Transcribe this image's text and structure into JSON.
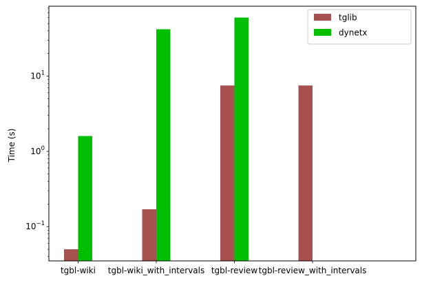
{
  "chart_data": {
    "type": "bar",
    "title": "",
    "xlabel": "",
    "ylabel": "Time (s)",
    "yscale": "log",
    "ylim": [
      0.035,
      85
    ],
    "categories": [
      "tgbl-wiki",
      "tgbl-wiki_with_intervals",
      "tgbl-review",
      "tgbl-review_with_intervals"
    ],
    "series": [
      {
        "name": "tglib",
        "color": "#a65050",
        "values": [
          0.05,
          0.17,
          7.5,
          7.5
        ]
      },
      {
        "name": "dynetx",
        "color": "#00bf00",
        "values": [
          1.6,
          42,
          60,
          null
        ]
      }
    ],
    "yticks": [
      {
        "value": 0.1,
        "base": "10",
        "exp": "−1"
      },
      {
        "value": 1,
        "base": "10",
        "exp": "0"
      },
      {
        "value": 10,
        "base": "10",
        "exp": "1"
      }
    ],
    "legend_position": "top-right",
    "grid": false
  }
}
